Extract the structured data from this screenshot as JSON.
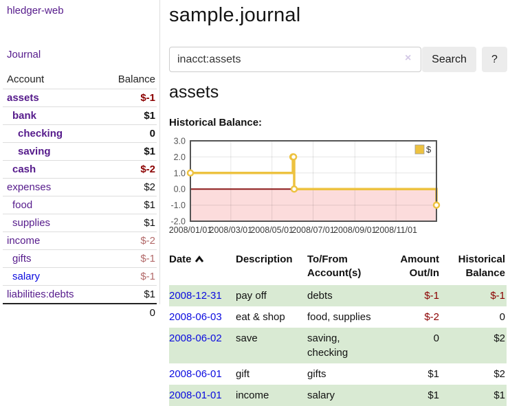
{
  "colors": {
    "purple_link": "#551a8b",
    "blue_link": "#0b0bdf",
    "negative_strong": "#8b0000",
    "negative_soft": "#b36a6a",
    "row_stripe_green": "#d9ead3",
    "chart_line_yellow": "#edc240",
    "chart_negative_pink": "#fcdcdc",
    "chart_zero_line_red": "#8b1a1a",
    "button_background": "#ececec"
  },
  "sidebar": {
    "brand": "hledger-web",
    "journal_link": "Journal",
    "accounts_table": {
      "headers": {
        "account": "Account",
        "balance": "Balance"
      },
      "rows": [
        {
          "name": "assets",
          "indent": 0,
          "bold": true,
          "balance": "$-1",
          "neg": "strong"
        },
        {
          "name": "bank",
          "indent": 1,
          "bold": true,
          "balance": "$1"
        },
        {
          "name": "checking",
          "indent": 2,
          "bold": true,
          "balance": "0"
        },
        {
          "name": "saving",
          "indent": 2,
          "bold": true,
          "balance": "$1"
        },
        {
          "name": "cash",
          "indent": 1,
          "bold": true,
          "balance": "$-2",
          "neg": "strong"
        },
        {
          "name": "expenses",
          "indent": 0,
          "bold": false,
          "balance": "$2"
        },
        {
          "name": "food",
          "indent": 1,
          "bold": false,
          "balance": "$1"
        },
        {
          "name": "supplies",
          "indent": 1,
          "bold": false,
          "balance": "$1"
        },
        {
          "name": "income",
          "indent": 0,
          "bold": false,
          "balance": "$-2",
          "neg": "soft"
        },
        {
          "name": "gifts",
          "indent": 1,
          "bold": false,
          "balance": "$-1",
          "neg": "soft"
        },
        {
          "name": "salary",
          "indent": 1,
          "bold": false,
          "balance": "$-1",
          "neg": "soft",
          "link_style": "unvisited"
        },
        {
          "name": "liabilities:debts",
          "indent": 0,
          "bold": false,
          "balance": "$1"
        }
      ],
      "total": "0"
    }
  },
  "header": {
    "title": "sample.journal"
  },
  "search": {
    "value": "inacct:assets",
    "clear_icon": "×",
    "button_label": "Search",
    "help_label": "?"
  },
  "account_page": {
    "heading": "assets",
    "chart_label": "Historical Balance:"
  },
  "chart_data": {
    "type": "line",
    "step": true,
    "title": "Historical Balance:",
    "series": [
      {
        "name": "$",
        "points": [
          [
            "2008-01-01",
            1
          ],
          [
            "2008-06-01",
            2
          ],
          [
            "2008-06-02",
            2
          ],
          [
            "2008-06-03",
            0
          ],
          [
            "2008-12-31",
            -1
          ]
        ]
      }
    ],
    "x_range": [
      "2008-01-01",
      "2008-12-31"
    ],
    "x_ticks": [
      {
        "date": "2008-01-01",
        "label": "2008/01/01"
      },
      {
        "date": "2008-03-01",
        "label": "2008/03/01"
      },
      {
        "date": "2008-05-01",
        "label": "2008/05/01"
      },
      {
        "date": "2008-07-01",
        "label": "2008/07/01"
      },
      {
        "date": "2008-09-01",
        "label": "2008/09/01"
      },
      {
        "date": "2008-11-01",
        "label": "2008/11/01"
      }
    ],
    "y_ticks": [
      {
        "value": 3,
        "label": "3.0"
      },
      {
        "value": 2,
        "label": "2.0"
      },
      {
        "value": 1,
        "label": "1.0"
      },
      {
        "value": 0,
        "label": "0.0"
      },
      {
        "value": -1,
        "label": "-1.0"
      },
      {
        "value": -2,
        "label": "-2.0"
      }
    ],
    "ylim": [
      -2,
      3
    ],
    "grid": true,
    "legend": {
      "label": "$",
      "position": "top-right"
    },
    "negative_region_shaded": true
  },
  "register_table": {
    "headers": {
      "date": "Date",
      "description": "Description",
      "accounts": "To/From Account(s)",
      "amount": "Amount Out/In",
      "balance": "Historical Balance"
    },
    "sort": {
      "column": "date",
      "direction": "ascending"
    },
    "rows": [
      {
        "date": "2008-12-31",
        "description": "pay off",
        "accounts": "debts",
        "amount": "$-1",
        "amount_neg": true,
        "balance": "$-1",
        "balance_neg": true
      },
      {
        "date": "2008-06-03",
        "description": "eat & shop",
        "accounts": "food, supplies",
        "amount": "$-2",
        "amount_neg": true,
        "balance": "0",
        "balance_neg": false
      },
      {
        "date": "2008-06-02",
        "description": "save",
        "accounts": "saving, checking",
        "amount": "0",
        "amount_neg": false,
        "balance": "$2",
        "balance_neg": false
      },
      {
        "date": "2008-06-01",
        "description": "gift",
        "accounts": "gifts",
        "amount": "$1",
        "amount_neg": false,
        "balance": "$2",
        "balance_neg": false
      },
      {
        "date": "2008-01-01",
        "description": "income",
        "accounts": "salary",
        "amount": "$1",
        "amount_neg": false,
        "balance": "$1",
        "balance_neg": false
      }
    ]
  }
}
